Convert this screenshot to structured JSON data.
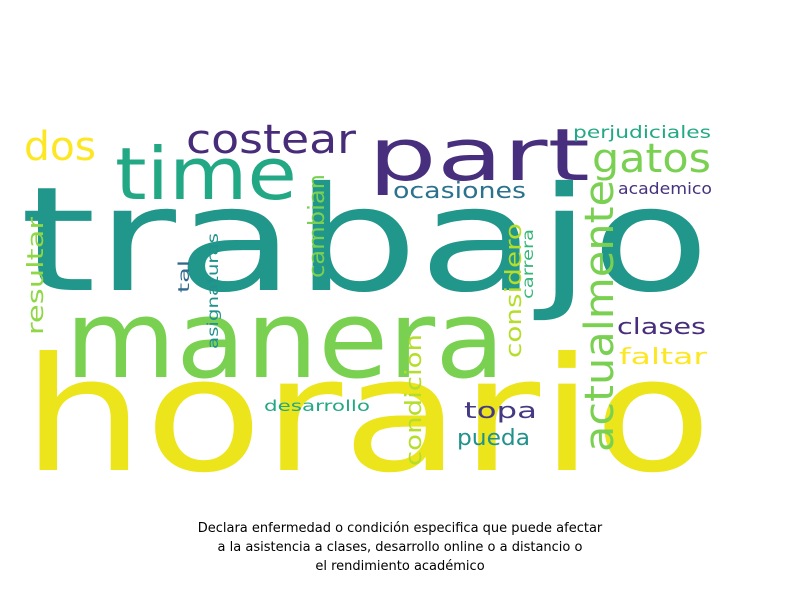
{
  "words": [
    {
      "text": "trabajo",
      "color": "#21968b"
    },
    {
      "text": "horario",
      "color": "#ece51b"
    },
    {
      "text": "manera",
      "color": "#7ad151"
    },
    {
      "text": "part",
      "color": "#482f7e"
    },
    {
      "text": "time",
      "color": "#22a884"
    },
    {
      "text": "costear",
      "color": "#472c7a"
    },
    {
      "text": "dos",
      "color": "#fde725"
    },
    {
      "text": "gatos",
      "color": "#7ad151"
    },
    {
      "text": "actualmente",
      "color": "#7ad151"
    },
    {
      "text": "ocasiones",
      "color": "#2c728e"
    },
    {
      "text": "perjudiciales",
      "color": "#22a884"
    },
    {
      "text": "academico",
      "color": "#46327e"
    },
    {
      "text": "cambian",
      "color": "#7ad151"
    },
    {
      "text": "considero",
      "color": "#b5de2b"
    },
    {
      "text": "carrera",
      "color": "#35b779"
    },
    {
      "text": "resultar",
      "color": "#8fd744"
    },
    {
      "text": "tal",
      "color": "#31688e"
    },
    {
      "text": "asignaturas",
      "color": "#21918c"
    },
    {
      "text": "clases",
      "color": "#472d7b"
    },
    {
      "text": "faltar",
      "color": "#fde725"
    },
    {
      "text": "condicion",
      "color": "#b5de2b"
    },
    {
      "text": "topa",
      "color": "#443983"
    },
    {
      "text": "pueda",
      "color": "#21918c"
    },
    {
      "text": "desarrollo",
      "color": "#22a884"
    }
  ],
  "caption": {
    "line1": "Declara enfermedad o condición especifica que puede afectar",
    "line2": "a la asistencia a clases, desarrollo online o a distancio o",
    "line3": "el rendimiento académico"
  }
}
